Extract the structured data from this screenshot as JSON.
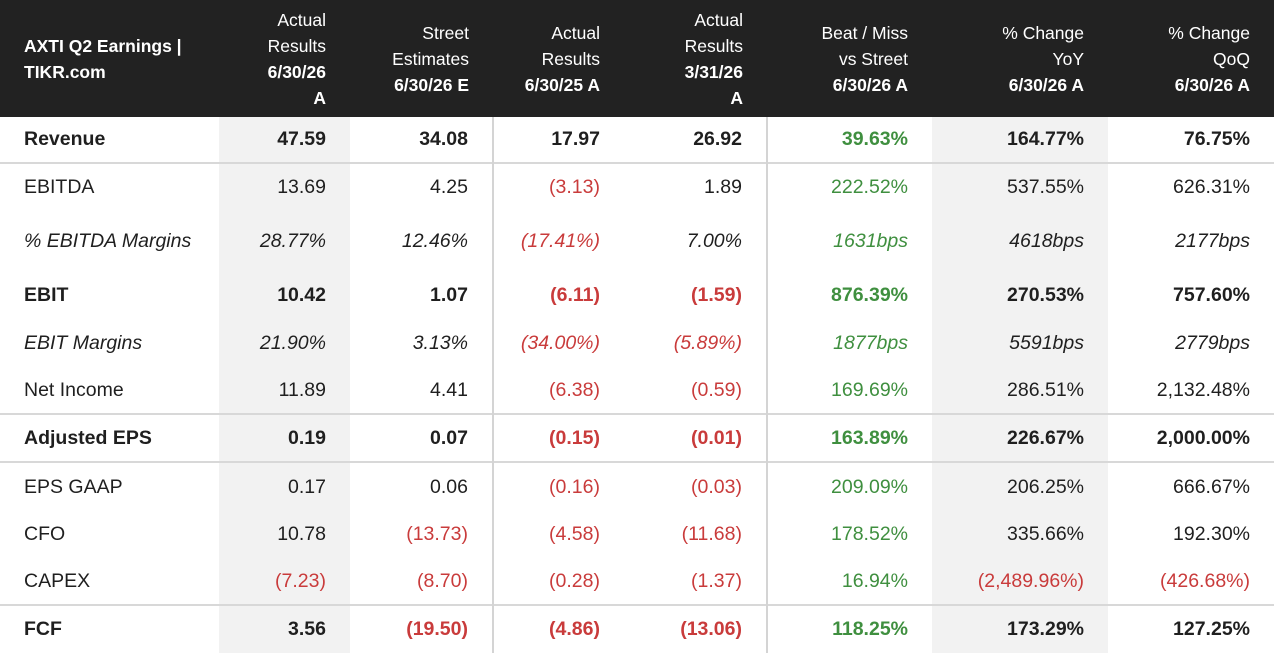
{
  "header": {
    "title_line1": "AXTI Q2 Earnings |",
    "title_line2": "TIKR.com",
    "columns": [
      {
        "lines": [
          "Actual",
          "Results"
        ],
        "bold": [
          "6/30/26",
          "A"
        ]
      },
      {
        "lines": [
          "Street",
          "Estimates"
        ],
        "bold": [
          "6/30/26 E"
        ]
      },
      {
        "lines": [
          "Actual",
          "Results"
        ],
        "bold": [
          "6/30/25 A"
        ]
      },
      {
        "lines": [
          "Actual",
          "Results"
        ],
        "bold": [
          "3/31/26",
          "A"
        ]
      },
      {
        "lines": [
          "Beat / Miss",
          "vs Street"
        ],
        "bold": [
          "6/30/26 A"
        ]
      },
      {
        "lines": [
          "% Change",
          "YoY"
        ],
        "bold": [
          "6/30/26 A"
        ]
      },
      {
        "lines": [
          "% Change",
          "QoQ"
        ],
        "bold": [
          "6/30/26 A"
        ]
      }
    ]
  },
  "colors": {
    "header_bg": "#222222",
    "negative": "#c93b3b",
    "positive": "#3f8f3f",
    "shaded_column": "#f2f2f2"
  },
  "rows": [
    {
      "label": "Revenue",
      "cells": [
        "47.59",
        "34.08",
        "17.97",
        "26.92",
        "39.63%",
        "164.77%",
        "76.75%"
      ]
    },
    {
      "label": "EBITDA",
      "cells": [
        "13.69",
        "4.25",
        "(3.13)",
        "1.89",
        "222.52%",
        "537.55%",
        "626.31%"
      ]
    },
    {
      "label": "% EBITDA Margins",
      "cells": [
        "28.77%",
        "12.46%",
        "(17.41%)",
        "7.00%",
        "1631bps",
        "4618bps",
        "2177bps"
      ]
    },
    {
      "label": "EBIT",
      "cells": [
        "10.42",
        "1.07",
        "(6.11)",
        "(1.59)",
        "876.39%",
        "270.53%",
        "757.60%"
      ]
    },
    {
      "label": "EBIT Margins",
      "cells": [
        "21.90%",
        "3.13%",
        "(34.00%)",
        "(5.89%)",
        "1877bps",
        "5591bps",
        "2779bps"
      ]
    },
    {
      "label": "Net Income",
      "cells": [
        "11.89",
        "4.41",
        "(6.38)",
        "(0.59)",
        "169.69%",
        "286.51%",
        "2,132.48%"
      ]
    },
    {
      "label": "Adjusted EPS",
      "cells": [
        "0.19",
        "0.07",
        "(0.15)",
        "(0.01)",
        "163.89%",
        "226.67%",
        "2,000.00%"
      ]
    },
    {
      "label": "EPS GAAP",
      "cells": [
        "0.17",
        "0.06",
        "(0.16)",
        "(0.03)",
        "209.09%",
        "206.25%",
        "666.67%"
      ]
    },
    {
      "label": "CFO",
      "cells": [
        "10.78",
        "(13.73)",
        "(4.58)",
        "(11.68)",
        "178.52%",
        "335.66%",
        "192.30%"
      ]
    },
    {
      "label": "CAPEX",
      "cells": [
        "(7.23)",
        "(8.70)",
        "(0.28)",
        "(1.37)",
        "16.94%",
        "(2,489.96%)",
        "(426.68%)"
      ]
    },
    {
      "label": "FCF",
      "cells": [
        "3.56",
        "(19.50)",
        "(4.86)",
        "(13.06)",
        "118.25%",
        "173.29%",
        "127.25%"
      ]
    }
  ]
}
